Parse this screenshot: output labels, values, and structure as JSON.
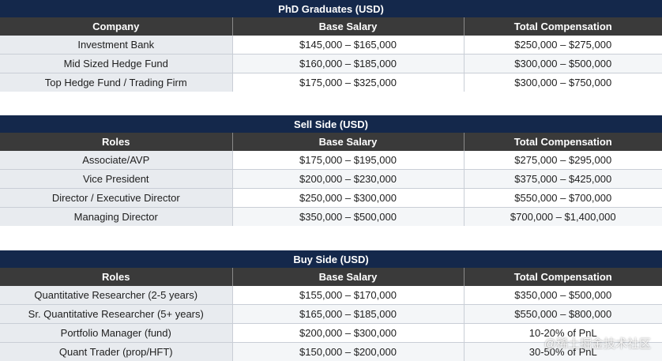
{
  "phd": {
    "title": "PhD Graduates (USD)",
    "headers": [
      "Company",
      "Base Salary",
      "Total Compensation"
    ],
    "rows": [
      [
        "Investment Bank",
        "$145,000 – $165,000",
        "$250,000 – $275,000"
      ],
      [
        "Mid Sized Hedge Fund",
        "$160,000 – $185,000",
        "$300,000 – $500,000"
      ],
      [
        "Top Hedge Fund / Trading Firm",
        "$175,000 – $325,000",
        "$300,000 – $750,000"
      ]
    ]
  },
  "sell": {
    "title": "Sell Side (USD)",
    "headers": [
      "Roles",
      "Base Salary",
      "Total Compensation"
    ],
    "rows": [
      [
        "Associate/AVP",
        "$175,000 – $195,000",
        "$275,000 – $295,000"
      ],
      [
        "Vice President",
        "$200,000 – $230,000",
        "$375,000 – $425,000"
      ],
      [
        "Director / Executive Director",
        "$250,000 – $300,000",
        "$550,000 – $700,000"
      ],
      [
        "Managing Director",
        "$350,000 – $500,000",
        "$700,000 – $1,400,000"
      ]
    ]
  },
  "buy": {
    "title": "Buy Side (USD)",
    "headers": [
      "Roles",
      "Base Salary",
      "Total Compensation"
    ],
    "rows": [
      [
        "Quantitative Researcher (2-5 years)",
        "$155,000 – $170,000",
        "$350,000 – $500,000"
      ],
      [
        "Sr. Quantitative Researcher (5+ years)",
        "$165,000 – $185,000",
        "$550,000 – $800,000"
      ],
      [
        "Portfolio Manager (fund)",
        "$200,000 – $300,000",
        "10-20% of PnL"
      ],
      [
        "Quant Trader (prop/HFT)",
        "$150,000 – $200,000",
        "30-50% of PnL"
      ]
    ]
  },
  "watermark": "@稀土掘金技术社区"
}
